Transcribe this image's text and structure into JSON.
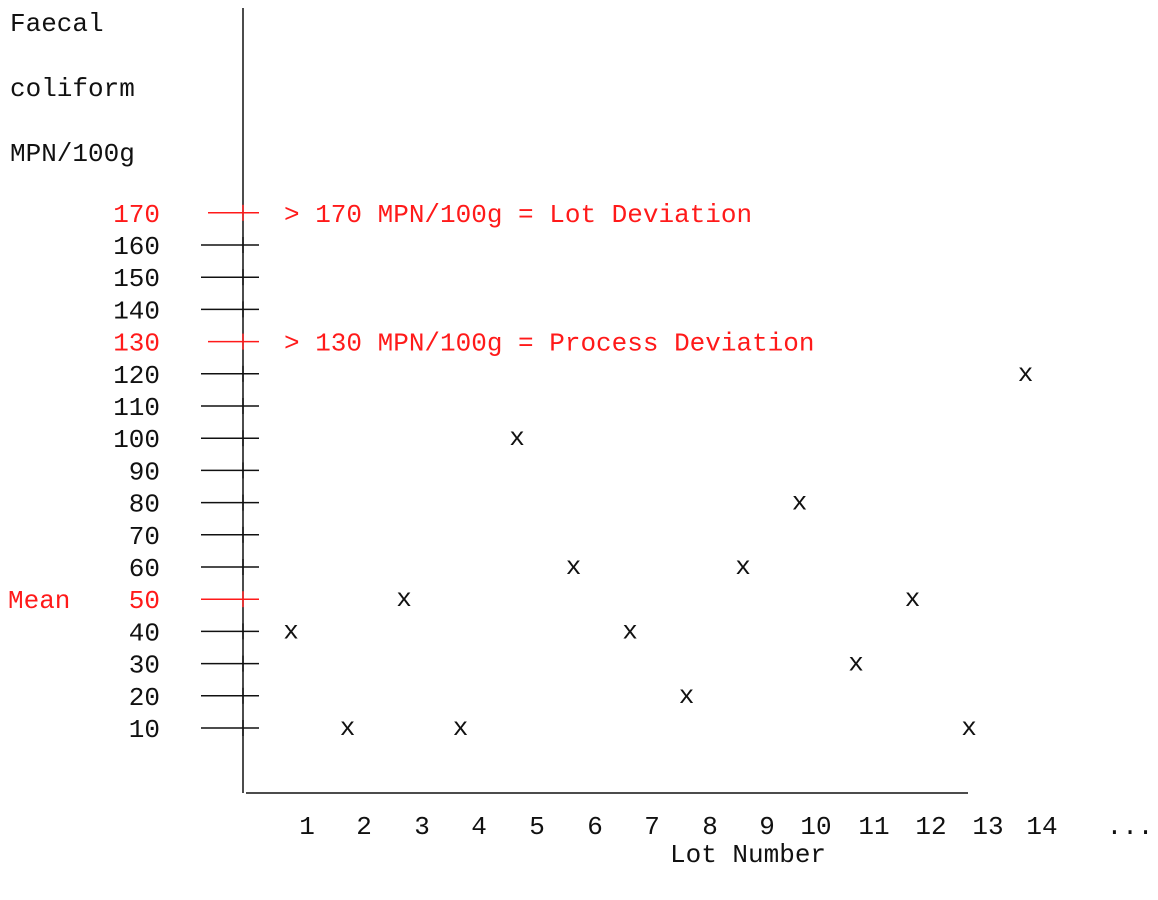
{
  "chart_data": {
    "type": "scatter",
    "ylabel_lines": [
      "Faecal",
      "coliform",
      "MPN/100g"
    ],
    "xlabel": "Lot Number",
    "y_ticks": [
      10,
      20,
      30,
      40,
      50,
      60,
      70,
      80,
      90,
      100,
      110,
      120,
      130,
      140,
      150,
      160,
      170
    ],
    "x_tick_labels": [
      "1",
      "2",
      "3",
      "4",
      "5",
      "6",
      "7",
      "8",
      "9",
      "10",
      "11",
      "12",
      "13",
      "14",
      "..."
    ],
    "marker": "x",
    "points": [
      {
        "lot": 1,
        "value": 40
      },
      {
        "lot": 2,
        "value": 10
      },
      {
        "lot": 3,
        "value": 50
      },
      {
        "lot": 4,
        "value": 10
      },
      {
        "lot": 5,
        "value": 100
      },
      {
        "lot": 6,
        "value": 60
      },
      {
        "lot": 7,
        "value": 40
      },
      {
        "lot": 8,
        "value": 20
      },
      {
        "lot": 9,
        "value": 60
      },
      {
        "lot": 10,
        "value": 80
      },
      {
        "lot": 11,
        "value": 30
      },
      {
        "lot": 12,
        "value": 50
      },
      {
        "lot": 13,
        "value": 10
      },
      {
        "lot": 14,
        "value": 120
      }
    ],
    "mean": {
      "label": "Mean",
      "value": 50
    },
    "limits": [
      {
        "value": 170,
        "label": "> 170 MPN/100g = Lot Deviation"
      },
      {
        "value": 130,
        "label": "> 130 MPN/100g = Process Deviation"
      }
    ],
    "highlight_color": "#ff1a1a",
    "grid": false,
    "legend": "none"
  }
}
